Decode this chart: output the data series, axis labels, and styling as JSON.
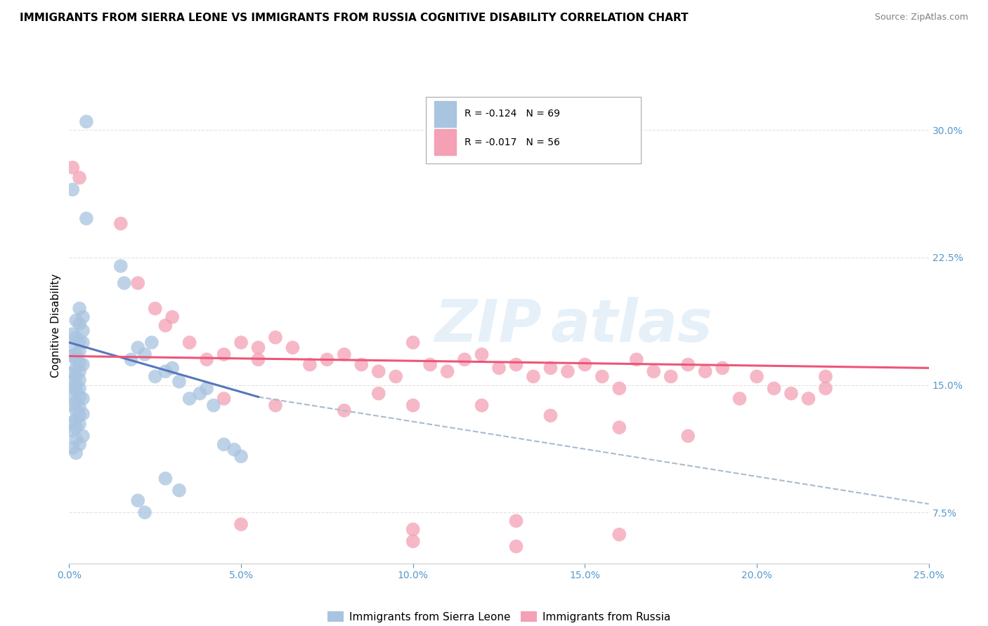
{
  "title": "IMMIGRANTS FROM SIERRA LEONE VS IMMIGRANTS FROM RUSSIA COGNITIVE DISABILITY CORRELATION CHART",
  "source": "Source: ZipAtlas.com",
  "ylabel_label": "Cognitive Disability",
  "legend1_r": "R = -0.124",
  "legend1_n": "N = 69",
  "legend2_r": "R = -0.017",
  "legend2_n": "N = 56",
  "legend1_label": "Immigrants from Sierra Leone",
  "legend2_label": "Immigrants from Russia",
  "color_blue": "#a8c4e0",
  "color_pink": "#f4a0b5",
  "color_blue_line": "#5577bb",
  "color_pink_line": "#ee5577",
  "color_dashed": "#aabbcc",
  "xlim": [
    0.0,
    0.25
  ],
  "ylim": [
    0.045,
    0.325
  ],
  "blue_scatter_x": [
    0.005,
    0.001,
    0.005,
    0.015,
    0.016,
    0.003,
    0.004,
    0.002,
    0.003,
    0.004,
    0.001,
    0.002,
    0.003,
    0.004,
    0.001,
    0.003,
    0.002,
    0.001,
    0.002,
    0.003,
    0.004,
    0.002,
    0.003,
    0.001,
    0.002,
    0.003,
    0.001,
    0.002,
    0.003,
    0.002,
    0.001,
    0.003,
    0.004,
    0.002,
    0.001,
    0.003,
    0.002,
    0.004,
    0.003,
    0.002,
    0.001,
    0.003,
    0.002,
    0.001,
    0.004,
    0.002,
    0.003,
    0.001,
    0.002,
    0.024,
    0.02,
    0.022,
    0.018,
    0.03,
    0.028,
    0.025,
    0.032,
    0.04,
    0.038,
    0.035,
    0.042,
    0.045,
    0.048,
    0.05,
    0.028,
    0.032,
    0.02,
    0.022
  ],
  "blue_scatter_y": [
    0.305,
    0.265,
    0.248,
    0.22,
    0.21,
    0.195,
    0.19,
    0.188,
    0.186,
    0.182,
    0.18,
    0.178,
    0.176,
    0.175,
    0.173,
    0.17,
    0.168,
    0.167,
    0.165,
    0.163,
    0.162,
    0.16,
    0.158,
    0.157,
    0.155,
    0.153,
    0.152,
    0.15,
    0.148,
    0.147,
    0.145,
    0.143,
    0.142,
    0.14,
    0.138,
    0.137,
    0.135,
    0.133,
    0.132,
    0.13,
    0.128,
    0.127,
    0.125,
    0.123,
    0.12,
    0.118,
    0.115,
    0.113,
    0.11,
    0.175,
    0.172,
    0.168,
    0.165,
    0.16,
    0.158,
    0.155,
    0.152,
    0.148,
    0.145,
    0.142,
    0.138,
    0.115,
    0.112,
    0.108,
    0.095,
    0.088,
    0.082,
    0.075
  ],
  "pink_scatter_x": [
    0.001,
    0.003,
    0.02,
    0.025,
    0.015,
    0.03,
    0.028,
    0.035,
    0.05,
    0.055,
    0.045,
    0.04,
    0.06,
    0.065,
    0.055,
    0.07,
    0.075,
    0.08,
    0.085,
    0.09,
    0.095,
    0.1,
    0.105,
    0.11,
    0.115,
    0.12,
    0.125,
    0.13,
    0.135,
    0.14,
    0.145,
    0.15,
    0.155,
    0.16,
    0.165,
    0.17,
    0.175,
    0.18,
    0.185,
    0.19,
    0.195,
    0.2,
    0.205,
    0.21,
    0.215,
    0.22,
    0.09,
    0.12,
    0.045,
    0.06,
    0.08,
    0.1,
    0.14,
    0.16,
    0.18,
    0.22
  ],
  "pink_scatter_y": [
    0.278,
    0.272,
    0.21,
    0.195,
    0.245,
    0.19,
    0.185,
    0.175,
    0.175,
    0.172,
    0.168,
    0.165,
    0.178,
    0.172,
    0.165,
    0.162,
    0.165,
    0.168,
    0.162,
    0.158,
    0.155,
    0.175,
    0.162,
    0.158,
    0.165,
    0.168,
    0.16,
    0.162,
    0.155,
    0.16,
    0.158,
    0.162,
    0.155,
    0.148,
    0.165,
    0.158,
    0.155,
    0.162,
    0.158,
    0.16,
    0.142,
    0.155,
    0.148,
    0.145,
    0.142,
    0.148,
    0.145,
    0.138,
    0.142,
    0.138,
    0.135,
    0.138,
    0.132,
    0.125,
    0.12,
    0.155
  ],
  "pink_extra_x": [
    0.05,
    0.1,
    0.13,
    0.16,
    0.1,
    0.13
  ],
  "pink_extra_y": [
    0.068,
    0.065,
    0.07,
    0.062,
    0.058,
    0.055
  ],
  "blue_line_x": [
    0.0,
    0.055
  ],
  "blue_line_y": [
    0.175,
    0.143
  ],
  "pink_line_x": [
    0.0,
    0.25
  ],
  "pink_line_y": [
    0.167,
    0.16
  ],
  "dashed_line_x": [
    0.055,
    0.25
  ],
  "dashed_line_y": [
    0.143,
    0.08
  ],
  "watermark_text": "ZIP atlas",
  "background_color": "#ffffff",
  "grid_color": "#dddddd",
  "yticks": [
    0.075,
    0.15,
    0.225,
    0.3
  ],
  "xticks": [
    0.0,
    0.05,
    0.1,
    0.15,
    0.2,
    0.25
  ],
  "tick_color": "#5599cc",
  "title_fontsize": 11,
  "source_fontsize": 9
}
